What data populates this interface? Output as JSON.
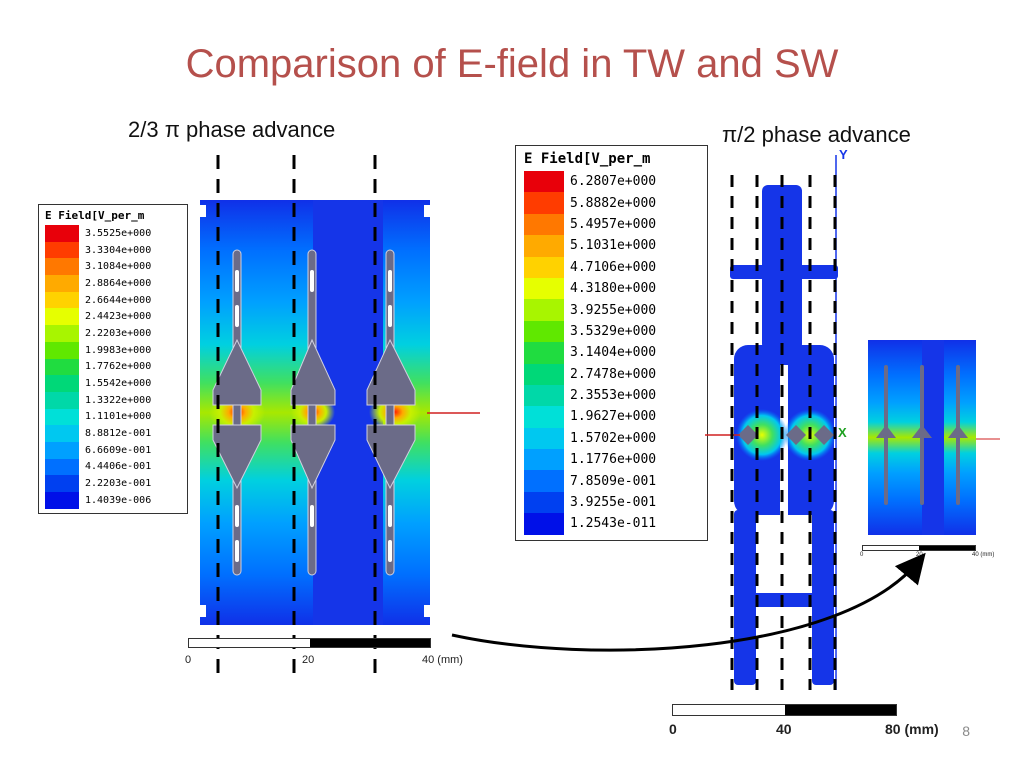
{
  "title": "Comparison of E-field in TW and SW",
  "captions": {
    "left": "2/3 π phase advance",
    "right": "π/2 phase advance"
  },
  "legend_left": {
    "title": "E Field[V_per_m",
    "values": [
      "3.5525e+000",
      "3.3304e+000",
      "3.1084e+000",
      "2.8864e+000",
      "2.6644e+000",
      "2.4423e+000",
      "2.2203e+000",
      "1.9983e+000",
      "1.7762e+000",
      "1.5542e+000",
      "1.3322e+000",
      "1.1101e+000",
      "8.8812e-001",
      "6.6609e-001",
      "4.4406e-001",
      "2.2203e-001",
      "1.4039e-006"
    ]
  },
  "legend_right": {
    "title": "E Field[V_per_m",
    "values": [
      "6.2807e+000",
      "5.8882e+000",
      "5.4957e+000",
      "5.1031e+000",
      "4.7106e+000",
      "4.3180e+000",
      "3.9255e+000",
      "3.5329e+000",
      "3.1404e+000",
      "2.7478e+000",
      "2.3553e+000",
      "1.9627e+000",
      "1.5702e+000",
      "1.1776e+000",
      "7.8509e-001",
      "3.9255e-001",
      "1.2543e-011"
    ]
  },
  "colorscale": [
    "#e8000a",
    "#ff3c00",
    "#ff7800",
    "#ffaa00",
    "#ffd200",
    "#e6ff00",
    "#a8f500",
    "#60e800",
    "#20dc40",
    "#00d878",
    "#00d8a8",
    "#00e0d8",
    "#00c8f0",
    "#00a0ff",
    "#0070ff",
    "#0040f0",
    "#0010e8"
  ],
  "scale_left": {
    "labels": [
      "0",
      "20",
      "40 (mm)"
    ]
  },
  "scale_right": {
    "labels": [
      "0",
      "40",
      "80 (mm)"
    ]
  },
  "scale_small": {
    "labels": [
      "0",
      "20",
      "40 (mm)"
    ]
  },
  "axis_labels": {
    "y": "Y",
    "x": "X"
  },
  "page_number": "8"
}
